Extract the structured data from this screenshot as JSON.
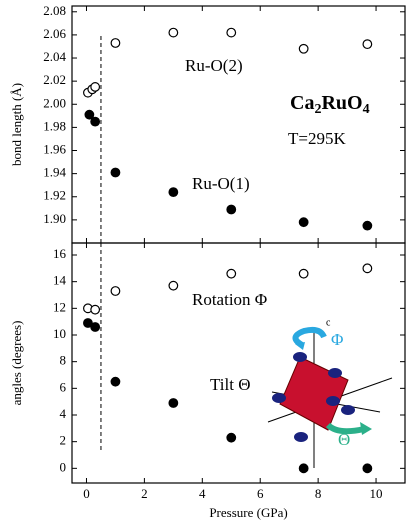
{
  "chart_data": [
    {
      "type": "scatter",
      "ylabel": "bond length (Å)",
      "xlim": [
        -0.5,
        11.0
      ],
      "xticks": [
        0,
        2,
        4,
        6,
        8,
        10
      ],
      "ylim": [
        1.88,
        2.085
      ],
      "yticks": [
        {
          "value": 1.9,
          "label": "1.90"
        },
        1.92,
        1.94,
        1.96,
        1.98,
        {
          "value": 2.0,
          "label": "2.00"
        },
        2.02,
        2.04,
        2.06,
        2.08
      ],
      "divider_x": 0.5,
      "formula": [
        "Ca",
        "2",
        "RuO",
        "4"
      ],
      "annotations": [
        "T=295K"
      ],
      "series": [
        {
          "name": "Ru-O(2)",
          "color": "#000000",
          "filled": false,
          "x": [
            0.05,
            0.2,
            0.3,
            1,
            3,
            5,
            7.5,
            9.7
          ],
          "values": [
            2.01,
            2.013,
            2.015,
            2.053,
            2.062,
            2.062,
            2.048,
            2.052
          ]
        },
        {
          "name": "Ru-O(1)",
          "color": "#000000",
          "filled": true,
          "x": [
            0.1,
            0.3,
            1,
            3,
            5,
            7.5,
            9.7
          ],
          "values": [
            1.991,
            1.985,
            1.941,
            1.924,
            1.909,
            1.898,
            1.895
          ]
        }
      ]
    },
    {
      "type": "scatter",
      "ylabel": "angles (degrees)",
      "xlabel": "Pressure (GPa)",
      "xlim": [
        -0.5,
        11.0
      ],
      "xticks": [
        0,
        2,
        4,
        6,
        8,
        10
      ],
      "ylim": [
        -1.1,
        16.9
      ],
      "yticks": [
        0,
        2,
        4,
        6,
        8,
        10,
        12,
        14,
        16
      ],
      "divider_x": 0.5,
      "inset_labels": [
        "c",
        "Φ",
        "Θ"
      ],
      "series": [
        {
          "name": "Rotation Φ",
          "color": "#000000",
          "filled": false,
          "x": [
            0.05,
            0.3,
            1,
            3,
            5,
            7.5,
            9.7
          ],
          "values": [
            12.0,
            11.9,
            13.3,
            13.7,
            14.6,
            14.6,
            15.0
          ]
        },
        {
          "name": "Tilt Θ",
          "color": "#000000",
          "filled": true,
          "x": [
            0.05,
            0.3,
            1,
            3,
            5,
            7.5,
            9.7
          ],
          "values": [
            10.9,
            10.6,
            6.5,
            4.9,
            2.3,
            0,
            0
          ]
        }
      ]
    }
  ]
}
